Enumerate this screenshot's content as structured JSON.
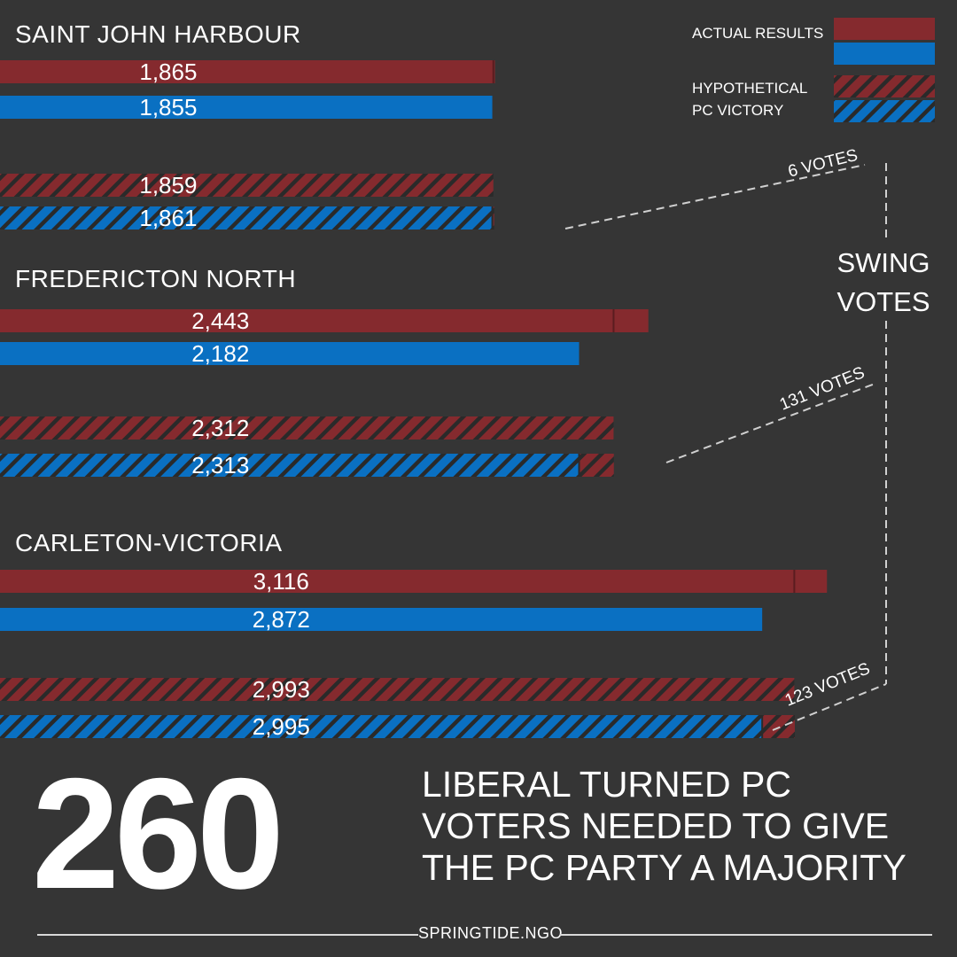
{
  "colors": {
    "background": "#353535",
    "liberal_red": "#852a2e",
    "pc_blue": "#0a70c2",
    "stripe": "#2a2a2a"
  },
  "legend": {
    "actual_label": "ACTUAL RESULTS",
    "hypothetical_label_line1": "HYPOTHETICAL",
    "hypothetical_label_line2": "PC VICTORY"
  },
  "swing": {
    "title_line1": "SWING",
    "title_line2": "VOTES"
  },
  "chart_data": {
    "type": "bar",
    "orientation": "horizontal",
    "series": [
      {
        "name": "ACTUAL RESULTS",
        "style": "solid"
      },
      {
        "name": "HYPOTHETICAL PC VICTORY",
        "style": "hatched"
      }
    ],
    "districts": [
      {
        "name": "SAINT JOHN HARBOUR",
        "actual": {
          "liberal": 1865,
          "liberal_label": "1,865",
          "pc": 1855,
          "pc_label": "1,855"
        },
        "hypothetical": {
          "liberal": 1859,
          "liberal_label": "1,859",
          "pc": 1861,
          "pc_label": "1,861"
        },
        "swing_votes": 6,
        "swing_label": "6 VOTES"
      },
      {
        "name": "FREDERICTON NORTH",
        "actual": {
          "liberal": 2443,
          "liberal_label": "2,443",
          "pc": 2182,
          "pc_label": "2,182"
        },
        "hypothetical": {
          "liberal": 2312,
          "liberal_label": "2,312",
          "pc": 2313,
          "pc_label": "2,313"
        },
        "swing_votes": 131,
        "swing_label": "131 VOTES"
      },
      {
        "name": "CARLETON-VICTORIA",
        "actual": {
          "liberal": 3116,
          "liberal_label": "3,116",
          "pc": 2872,
          "pc_label": "2,872"
        },
        "hypothetical": {
          "liberal": 2993,
          "liberal_label": "2,993",
          "pc": 2995,
          "pc_label": "2,995"
        },
        "swing_votes": 123,
        "swing_label": "123 VOTES"
      }
    ]
  },
  "headline": {
    "number": "260",
    "line1": "LIBERAL TURNED PC",
    "line2": "VOTERS NEEDED TO GIVE",
    "line3": "THE PC PARTY A MAJORITY"
  },
  "footer": {
    "text": "SPRINGTIDE.NGO"
  }
}
